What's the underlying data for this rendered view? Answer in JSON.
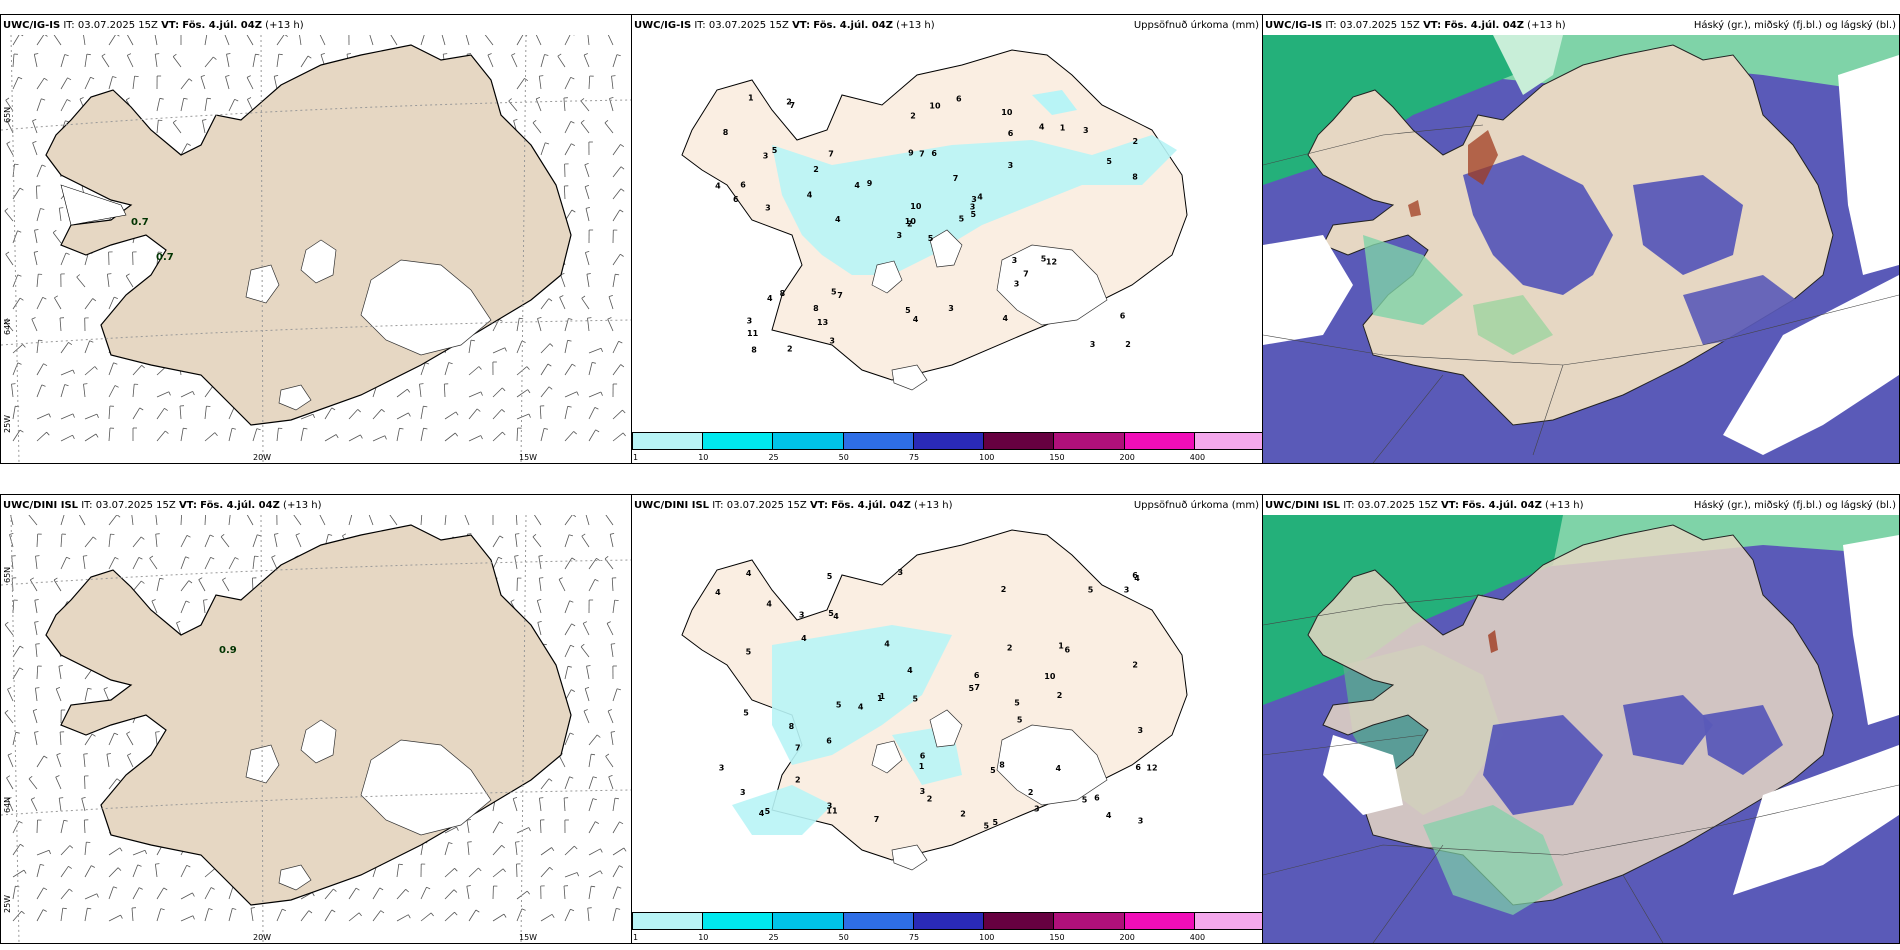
{
  "rows": [
    {
      "model": "UWC/IG-IS",
      "it_label": "IT:",
      "it_value": "03.07.2025 15Z",
      "vt_label": "VT:",
      "vt_value": "Fös. 4.júl. 04Z",
      "lead": "(+13 h)",
      "precip_title": "Uppsöfnuð úrkoma (mm)",
      "cloud_title": "Háský (gr.), miðský (fj.bl.) og lágský (bl.)",
      "wind_values": [
        "0.7",
        "0.7"
      ],
      "precip_values": [
        "5",
        "3",
        "2",
        "3",
        "3",
        "7",
        "10",
        "6",
        "6",
        "5",
        "7",
        "2",
        "3",
        "2",
        "3",
        "3",
        "2",
        "9",
        "7",
        "8",
        "9",
        "11",
        "13",
        "7",
        "4",
        "12",
        "5",
        "2",
        "6",
        "3",
        "8",
        "10",
        "5",
        "10",
        "7",
        "4",
        "5",
        "3",
        "6",
        "5",
        "6",
        "4",
        "4",
        "3",
        "3",
        "4",
        "3",
        "8",
        "4",
        "5",
        "4",
        "5",
        "8",
        "7",
        "4",
        "8",
        "2",
        "1",
        "3",
        "3",
        "10",
        "4",
        "6",
        "2",
        "1"
      ]
    },
    {
      "model": "UWC/DINI ISL",
      "it_label": "IT:",
      "it_value": "03.07.2025 15Z",
      "vt_label": "VT:",
      "vt_value": "Fös. 4.júl. 04Z",
      "lead": "(+13 h)",
      "precip_title": "Uppsöfnuð úrkoma (mm)",
      "cloud_title": "Háský (gr.), miðský (fj.bl.) og lágský (bl.)",
      "wind_values": [
        "0.9"
      ],
      "precip_values": [
        "7",
        "5",
        "3",
        "2",
        "5",
        "4",
        "5",
        "4",
        "3",
        "4",
        "5",
        "2",
        "1",
        "1",
        "2",
        "5",
        "5",
        "11",
        "4",
        "4",
        "5",
        "4",
        "6",
        "4",
        "6",
        "8",
        "3",
        "7",
        "4",
        "5",
        "5",
        "5",
        "6",
        "3",
        "2",
        "5",
        "6",
        "3",
        "2",
        "6",
        "7",
        "10",
        "12",
        "5",
        "4",
        "8",
        "3",
        "2",
        "3",
        "3",
        "6",
        "2",
        "3",
        "4",
        "6",
        "1",
        "1",
        "4",
        "5",
        "5",
        "5",
        "3",
        "4",
        "2"
      ]
    }
  ],
  "geo": {
    "lat_65": "65N",
    "lat_64": "64N",
    "lon_25": "25W",
    "lon_20": "20W",
    "lon_15": "15W",
    "lat_65_mid": "65N",
    "lat_64_mid": "64N"
  },
  "colorbar": {
    "ticks": [
      "1",
      "10",
      "25",
      "50",
      "75",
      "100",
      "150",
      "200",
      "400"
    ],
    "colors": [
      "#b8f4f6",
      "#00e8ee",
      "#00c4e8",
      "#2e6ee6",
      "#2a2ab8",
      "#660040",
      "#b0107a",
      "#f00eb8",
      "#f4a8ec"
    ]
  },
  "colors": {
    "land": "#e6d7c3",
    "land_light": "#faeee2",
    "cloud_low": "#5a5ab8",
    "cloud_mid": "#24b07a",
    "cloud_high": "#a03c20",
    "sea": "#ffffff"
  }
}
